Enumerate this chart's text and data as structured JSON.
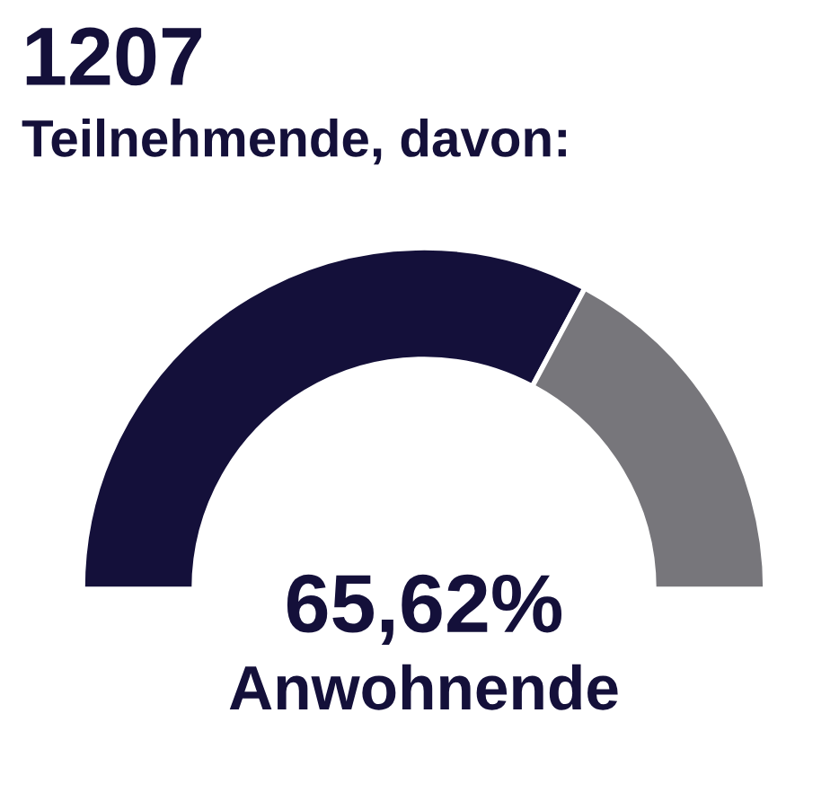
{
  "chart_data": {
    "type": "donut",
    "title": "1207",
    "subtitle": "Teilnehmende, davon:",
    "categories": [
      null,
      null
    ],
    "annotations": [
      "65,62%",
      "Anwohnende"
    ],
    "values": [
      65.62,
      34.38
    ],
    "colors": [
      "#14103a",
      "#77767b"
    ]
  }
}
